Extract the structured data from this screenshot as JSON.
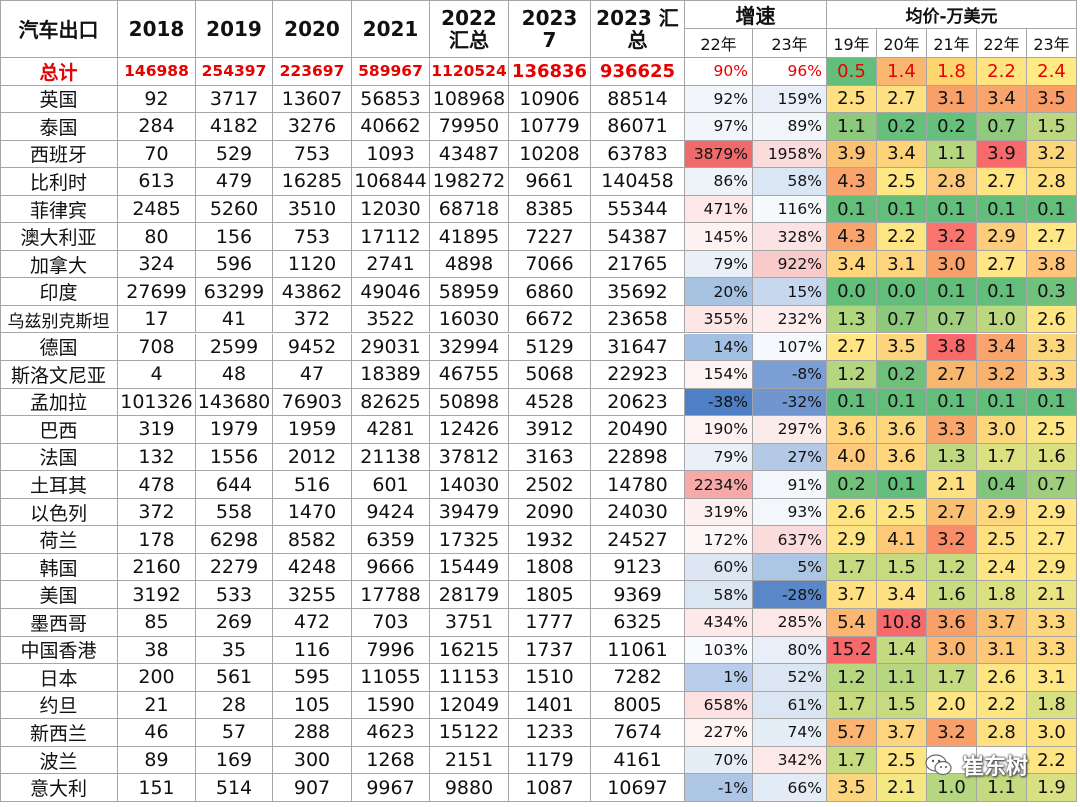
{
  "header": {
    "title": "汽车出口",
    "years": [
      "2018",
      "2019",
      "2020",
      "2021"
    ],
    "y2022": {
      "line1": "2022",
      "line2": "汇总"
    },
    "y2023m": {
      "line1": "2023",
      "line2": "7"
    },
    "y2023t": {
      "line1": "2023 汇",
      "line2": "总"
    },
    "growth": {
      "title": "增速",
      "sub": [
        "22年",
        "23年"
      ]
    },
    "price": {
      "title": "均价-万美元",
      "sub": [
        "19年",
        "20年",
        "21年",
        "22年",
        "23年"
      ]
    }
  },
  "rows": [
    {
      "name": "总计",
      "v": [
        "146988",
        "254397",
        "223697",
        "589967",
        "1120524",
        "136836",
        "936625"
      ],
      "g": [
        "90%",
        "96%"
      ],
      "p": [
        "0.5",
        "1.4",
        "1.8",
        "2.2",
        "2.4"
      ]
    },
    {
      "name": "英国",
      "v": [
        "92",
        "3717",
        "13607",
        "56853",
        "108968",
        "10906",
        "88514"
      ],
      "g": [
        "92%",
        "159%"
      ],
      "p": [
        "2.5",
        "2.7",
        "3.1",
        "3.4",
        "3.5"
      ]
    },
    {
      "name": "泰国",
      "v": [
        "284",
        "4182",
        "3276",
        "40662",
        "79950",
        "10779",
        "86071"
      ],
      "g": [
        "97%",
        "89%"
      ],
      "p": [
        "1.1",
        "0.2",
        "0.2",
        "0.7",
        "1.5"
      ]
    },
    {
      "name": "西班牙",
      "v": [
        "70",
        "529",
        "753",
        "1093",
        "43487",
        "10208",
        "63783"
      ],
      "g": [
        "3879%",
        "1958%"
      ],
      "p": [
        "3.9",
        "3.4",
        "1.1",
        "3.9",
        "3.2"
      ]
    },
    {
      "name": "比利时",
      "v": [
        "613",
        "479",
        "16285",
        "106844",
        "198272",
        "9661",
        "140458"
      ],
      "g": [
        "86%",
        "58%"
      ],
      "p": [
        "4.3",
        "2.5",
        "2.8",
        "2.7",
        "2.8"
      ]
    },
    {
      "name": "菲律宾",
      "v": [
        "2485",
        "5260",
        "3510",
        "12030",
        "68718",
        "8385",
        "55344"
      ],
      "g": [
        "471%",
        "116%"
      ],
      "p": [
        "0.1",
        "0.1",
        "0.1",
        "0.1",
        "0.1"
      ]
    },
    {
      "name": "澳大利亚",
      "v": [
        "80",
        "156",
        "753",
        "17112",
        "41895",
        "7227",
        "54387"
      ],
      "g": [
        "145%",
        "328%"
      ],
      "p": [
        "4.3",
        "2.2",
        "3.2",
        "2.9",
        "2.7"
      ]
    },
    {
      "name": "加拿大",
      "v": [
        "324",
        "596",
        "1120",
        "2741",
        "4898",
        "7066",
        "21765"
      ],
      "g": [
        "79%",
        "922%"
      ],
      "p": [
        "3.4",
        "3.1",
        "3.0",
        "2.7",
        "3.8"
      ]
    },
    {
      "name": "印度",
      "v": [
        "27699",
        "63299",
        "43862",
        "49046",
        "58959",
        "6860",
        "35692"
      ],
      "g": [
        "20%",
        "15%"
      ],
      "p": [
        "0.0",
        "0.0",
        "0.1",
        "0.1",
        "0.3"
      ]
    },
    {
      "name": "乌兹别克斯坦",
      "v": [
        "17",
        "41",
        "372",
        "3522",
        "16030",
        "6672",
        "23658"
      ],
      "g": [
        "355%",
        "232%"
      ],
      "p": [
        "1.3",
        "0.7",
        "0.7",
        "1.0",
        "2.6"
      ]
    },
    {
      "name": "德国",
      "v": [
        "708",
        "2599",
        "9452",
        "29031",
        "32994",
        "5129",
        "31647"
      ],
      "g": [
        "14%",
        "107%"
      ],
      "p": [
        "2.7",
        "3.5",
        "3.8",
        "3.4",
        "3.3"
      ]
    },
    {
      "name": "斯洛文尼亚",
      "v": [
        "4",
        "48",
        "47",
        "18389",
        "46755",
        "5068",
        "22923"
      ],
      "g": [
        "154%",
        "-8%"
      ],
      "p": [
        "1.2",
        "0.2",
        "2.7",
        "3.2",
        "3.3"
      ]
    },
    {
      "name": "孟加拉",
      "v": [
        "101326",
        "143680",
        "76903",
        "82625",
        "50898",
        "4528",
        "20623"
      ],
      "g": [
        "-38%",
        "-32%"
      ],
      "p": [
        "0.1",
        "0.1",
        "0.1",
        "0.1",
        "0.1"
      ]
    },
    {
      "name": "巴西",
      "v": [
        "319",
        "1979",
        "1959",
        "4281",
        "12426",
        "3912",
        "20490"
      ],
      "g": [
        "190%",
        "297%"
      ],
      "p": [
        "3.6",
        "3.6",
        "3.3",
        "3.0",
        "2.5"
      ]
    },
    {
      "name": "法国",
      "v": [
        "132",
        "1556",
        "2012",
        "21138",
        "37812",
        "3163",
        "22898"
      ],
      "g": [
        "79%",
        "27%"
      ],
      "p": [
        "4.0",
        "3.6",
        "1.3",
        "1.7",
        "1.6"
      ]
    },
    {
      "name": "土耳其",
      "v": [
        "478",
        "644",
        "516",
        "601",
        "14030",
        "2502",
        "14780"
      ],
      "g": [
        "2234%",
        "91%"
      ],
      "p": [
        "0.2",
        "0.1",
        "2.1",
        "0.4",
        "0.7"
      ]
    },
    {
      "name": "以色列",
      "v": [
        "372",
        "558",
        "1470",
        "9424",
        "39479",
        "2090",
        "24030"
      ],
      "g": [
        "319%",
        "93%"
      ],
      "p": [
        "2.6",
        "2.5",
        "2.7",
        "2.9",
        "2.9"
      ]
    },
    {
      "name": "荷兰",
      "v": [
        "178",
        "6298",
        "8582",
        "6359",
        "17325",
        "1932",
        "24527"
      ],
      "g": [
        "172%",
        "637%"
      ],
      "p": [
        "2.9",
        "4.1",
        "3.2",
        "2.5",
        "2.7"
      ]
    },
    {
      "name": "韩国",
      "v": [
        "2160",
        "2279",
        "4248",
        "9666",
        "15449",
        "1808",
        "9123"
      ],
      "g": [
        "60%",
        "5%"
      ],
      "p": [
        "1.7",
        "1.5",
        "1.2",
        "2.4",
        "2.9"
      ]
    },
    {
      "name": "美国",
      "v": [
        "3192",
        "533",
        "3255",
        "17788",
        "28179",
        "1805",
        "9369"
      ],
      "g": [
        "58%",
        "-28%"
      ],
      "p": [
        "3.7",
        "3.4",
        "1.6",
        "1.8",
        "2.1"
      ]
    },
    {
      "name": "墨西哥",
      "v": [
        "85",
        "269",
        "472",
        "703",
        "3751",
        "1777",
        "6325"
      ],
      "g": [
        "434%",
        "285%"
      ],
      "p": [
        "5.4",
        "10.8",
        "3.6",
        "3.7",
        "3.3"
      ]
    },
    {
      "name": "中国香港",
      "v": [
        "38",
        "35",
        "116",
        "7996",
        "16215",
        "1737",
        "11061"
      ],
      "g": [
        "103%",
        "80%"
      ],
      "p": [
        "15.2",
        "1.4",
        "3.0",
        "3.1",
        "3.3"
      ]
    },
    {
      "name": "日本",
      "v": [
        "200",
        "561",
        "595",
        "11055",
        "11153",
        "1510",
        "7282"
      ],
      "g": [
        "1%",
        "52%"
      ],
      "p": [
        "1.2",
        "1.1",
        "1.7",
        "2.6",
        "3.1"
      ]
    },
    {
      "name": "约旦",
      "v": [
        "21",
        "28",
        "105",
        "1590",
        "12049",
        "1401",
        "8005"
      ],
      "g": [
        "658%",
        "61%"
      ],
      "p": [
        "1.7",
        "1.5",
        "2.0",
        "2.2",
        "1.8"
      ]
    },
    {
      "name": "新西兰",
      "v": [
        "46",
        "57",
        "288",
        "4623",
        "15122",
        "1233",
        "7674"
      ],
      "g": [
        "227%",
        "74%"
      ],
      "p": [
        "5.7",
        "3.7",
        "3.2",
        "2.8",
        "3.0"
      ]
    },
    {
      "name": "波兰",
      "v": [
        "89",
        "169",
        "300",
        "1268",
        "2151",
        "1179",
        "4161"
      ],
      "g": [
        "70%",
        "342%"
      ],
      "p": [
        "1.7",
        "2.5",
        "",
        "",
        "2.2"
      ]
    },
    {
      "name": "意大利",
      "v": [
        "151",
        "514",
        "907",
        "9967",
        "9880",
        "1087",
        "10697"
      ],
      "g": [
        "-1%",
        "66%"
      ],
      "p": [
        "3.5",
        "2.1",
        "1.0",
        "1.1",
        "1.9"
      ]
    }
  ],
  "growth_colors": [
    [
      "#ffffff",
      "#ffffff"
    ],
    [
      "#f2f6fb",
      "#e9eff8"
    ],
    [
      "#f2f6fb",
      "#f2f6fb"
    ],
    [
      "#ef6b6b",
      "#fbdcdc"
    ],
    [
      "#eef3fa",
      "#dbe6f4"
    ],
    [
      "#fde7e7",
      "#f6f9fc"
    ],
    [
      "#fdf1f1",
      "#fbe3e3"
    ],
    [
      "#eaf0f8",
      "#f8caca"
    ],
    [
      "#a8c2e2",
      "#c6d7ee"
    ],
    [
      "#fde6e6",
      "#fdeded"
    ],
    [
      "#a3bfe1",
      "#f5f8fc"
    ],
    [
      "#fdf3f3",
      "#7b9fd4"
    ],
    [
      "#4f7fc4",
      "#7196cf"
    ],
    [
      "#fef2f2",
      "#fcebeb"
    ],
    [
      "#eaf0f8",
      "#b3c9e6"
    ],
    [
      "#f7a8a8",
      "#f3f6fb"
    ],
    [
      "#fdefef",
      "#f3f6fb"
    ],
    [
      "#fdf6f6",
      "#fadcdc"
    ],
    [
      "#dde7f4",
      "#aec6e5"
    ],
    [
      "#dbe6f3",
      "#5a87c7"
    ],
    [
      "#fde9e9",
      "#fde8e8"
    ],
    [
      "#f8fafd",
      "#e9eff8"
    ],
    [
      "#b8cde9",
      "#dce6f3"
    ],
    [
      "#fde1e1",
      "#dce6f3"
    ],
    [
      "#fef4f4",
      "#e5edf7"
    ],
    [
      "#e5edf7",
      "#fde8e8"
    ],
    [
      "#aec6e5",
      "#e3ebf6"
    ]
  ],
  "price_colors": [
    [
      "#63be7b",
      "#f8b66f",
      "#fed56f",
      "#fee582",
      "#ffeb84"
    ],
    [
      "#ffdf7f",
      "#ffe183",
      "#f8a06a",
      "#f9a46c",
      "#f99e69"
    ],
    [
      "#8cc97c",
      "#66bf7b",
      "#66bf7b",
      "#8fca7d",
      "#bdd780"
    ],
    [
      "#fcc274",
      "#fdd37a",
      "#b6d67f",
      "#f8696b",
      "#fcd67c"
    ],
    [
      "#f8a46c",
      "#ffe784",
      "#fcc87b",
      "#ffe483",
      "#ffe080"
    ],
    [
      "#63be7b",
      "#63be7b",
      "#63be7b",
      "#63be7b",
      "#63be7b"
    ],
    [
      "#f8a46c",
      "#fee583",
      "#f8746d",
      "#fecd7b",
      "#ffe785"
    ],
    [
      "#ffd57c",
      "#fed47e",
      "#f8a06a",
      "#ffe585",
      "#ffc47a"
    ],
    [
      "#63be7b",
      "#63be7b",
      "#63be7b",
      "#63be7b",
      "#70c17c"
    ],
    [
      "#b2d57f",
      "#8cc97c",
      "#9fcf7e",
      "#bcd780",
      "#ffe583"
    ],
    [
      "#ffe583",
      "#fdd47e",
      "#f8696b",
      "#f9a46c",
      "#fcd67c"
    ],
    [
      "#b5d57f",
      "#6ec07b",
      "#f8b76f",
      "#f8b26e",
      "#ffd67c"
    ],
    [
      "#63be7b",
      "#63be7b",
      "#63be7b",
      "#63be7b",
      "#63be7b"
    ],
    [
      "#ffd67c",
      "#fed67e",
      "#f8a66c",
      "#fdd67c",
      "#ffe685"
    ],
    [
      "#fec97a",
      "#ffd67e",
      "#bed780",
      "#dbe081",
      "#dbe081"
    ],
    [
      "#72c27b",
      "#63be7b",
      "#fee082",
      "#82c67c",
      "#9fcf7e"
    ],
    [
      "#fee583",
      "#fee583",
      "#f9c073",
      "#fed67e",
      "#ffe585"
    ],
    [
      "#ffe483",
      "#fec879",
      "#f98d69",
      "#fee080",
      "#ffe785"
    ],
    [
      "#c6da80",
      "#c6da80",
      "#c6da80",
      "#fee583",
      "#fee583"
    ],
    [
      "#fee082",
      "#fee082",
      "#c8db80",
      "#d9e082",
      "#eae582"
    ],
    [
      "#fbb672",
      "#f8696b",
      "#f8a06a",
      "#fbbf73",
      "#fed67c"
    ],
    [
      "#f8696b",
      "#c4d980",
      "#fbb672",
      "#fec879",
      "#fed67c"
    ],
    [
      "#b6d67f",
      "#b6d67f",
      "#c4da80",
      "#fee583",
      "#ffe785"
    ],
    [
      "#c6da80",
      "#c6da80",
      "#ffe585",
      "#fee583",
      "#d9e082"
    ],
    [
      "#fbb572",
      "#fed47e",
      "#f8a06a",
      "#fee080",
      "#ffe380"
    ],
    [
      "#c6da80",
      "#fee583",
      "#ffffff",
      "#ffffff",
      "#fee583"
    ],
    [
      "#fbd57d",
      "#f4e884",
      "#b6d67f",
      "#c4da80",
      "#d9e082"
    ]
  ],
  "watermark": {
    "text": "崔东树"
  }
}
